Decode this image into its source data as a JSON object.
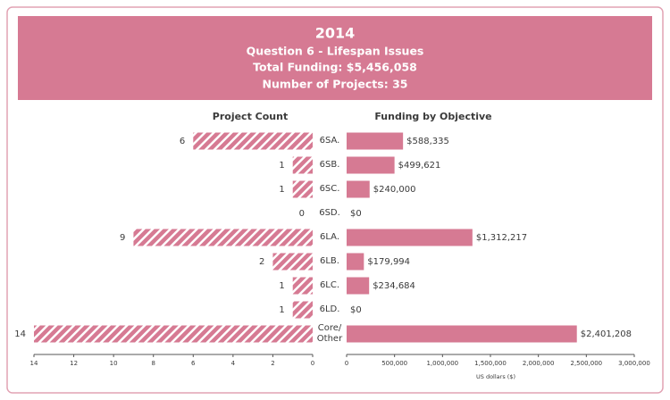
{
  "header": {
    "title": "2014",
    "subtitle": "Question 6 - Lifespan Issues",
    "total_funding": "Total Funding: $5,456,058",
    "projects": "Number of Projects: 35"
  },
  "chart_data": [
    {
      "type": "hbar",
      "title": "Project Count",
      "categories": [
        "6SA.",
        "6SB.",
        "6SC.",
        "6SD.",
        "6LA.",
        "6LB.",
        "6LC.",
        "6LD.",
        "Core/ Other"
      ],
      "values": [
        6,
        1,
        1,
        0,
        9,
        2,
        1,
        1,
        14
      ],
      "color": "#d67a93",
      "hatch": true,
      "xlim": [
        14,
        0
      ],
      "xticks": [
        14,
        12,
        10,
        8,
        6,
        4,
        2,
        0
      ]
    },
    {
      "type": "hbar",
      "title": "Funding by Objective",
      "xlabel": "US dollars ($)",
      "values": [
        588335,
        499621,
        240000,
        0,
        1312217,
        179994,
        234684,
        0,
        2401208
      ],
      "value_labels": [
        "$588,335",
        "$499,621",
        "$240,000",
        "$0",
        "$1,312,217",
        "$179,994",
        "$234,684",
        "$0",
        "$2,401,208"
      ],
      "color": "#d67a93",
      "hatch": false,
      "xlim": [
        0,
        3000000
      ],
      "xticks": [
        0,
        {
          "value": 500000,
          "label": "500,000"
        },
        {
          "value": 1000000,
          "label": "1,000,000"
        },
        {
          "value": 1500000,
          "label": "1,500,000"
        },
        {
          "value": 2000000,
          "label": "2,000,000"
        },
        {
          "value": 2500000,
          "label": "2,500,000"
        },
        {
          "value": 3000000,
          "label": "3,000,000"
        }
      ]
    }
  ]
}
